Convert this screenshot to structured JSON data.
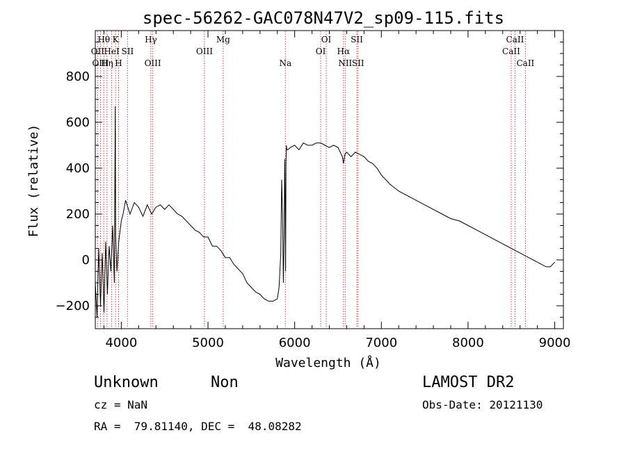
{
  "chart_data": {
    "type": "line",
    "title": "spec-56262-GAC078N47V2_sp09-115.fits",
    "xlabel": "Wavelength (Å)",
    "ylabel": "Flux (relative)",
    "xlim": [
      3700,
      9100
    ],
    "ylim": [
      -300,
      1000
    ],
    "xticks": [
      4000,
      5000,
      6000,
      7000,
      8000,
      9000
    ],
    "yticks": [
      -200,
      0,
      200,
      400,
      600,
      800
    ],
    "grid": false,
    "series": [
      {
        "x": [
          3700,
          3720,
          3740,
          3760,
          3780,
          3800,
          3820,
          3840,
          3860,
          3880,
          3900,
          3920,
          3930,
          3935,
          3950,
          3970,
          4000,
          4020,
          4050,
          4100,
          4150,
          4200,
          4250,
          4300,
          4350,
          4400,
          4450,
          4500,
          4550,
          4600,
          4650,
          4700,
          4750,
          4800,
          4850,
          4900,
          4950,
          5000,
          5050,
          5100,
          5150,
          5200,
          5250,
          5300,
          5350,
          5400,
          5450,
          5500,
          5550,
          5600,
          5650,
          5700,
          5750,
          5800,
          5820,
          5840,
          5850,
          5860,
          5870,
          5880,
          5885,
          5890,
          5895,
          5900,
          5905,
          5910,
          5920,
          5950,
          6000,
          6050,
          6100,
          6150,
          6200,
          6250,
          6300,
          6350,
          6400,
          6450,
          6500,
          6550,
          6563,
          6580,
          6600,
          6650,
          6700,
          6750,
          6800,
          6850,
          6900,
          6950,
          7000,
          7100,
          7200,
          7300,
          7400,
          7500,
          7600,
          7700,
          7800,
          7900,
          8000,
          8100,
          8200,
          8300,
          8400,
          8500,
          8550,
          8600,
          8650,
          8700,
          8750,
          8800,
          8850,
          8900,
          8950,
          9000
        ],
        "y": [
          -100,
          -250,
          50,
          -200,
          30,
          -230,
          80,
          -150,
          60,
          -50,
          150,
          -100,
          670,
          100,
          -50,
          80,
          170,
          200,
          260,
          200,
          250,
          230,
          190,
          240,
          200,
          230,
          240,
          220,
          240,
          220,
          200,
          190,
          170,
          150,
          130,
          120,
          100,
          100,
          60,
          60,
          40,
          10,
          10,
          -20,
          -40,
          -60,
          -100,
          -120,
          -140,
          -150,
          -170,
          -180,
          -180,
          -170,
          -120,
          30,
          350,
          200,
          -100,
          150,
          440,
          300,
          -50,
          420,
          500,
          480,
          480,
          490,
          500,
          480,
          510,
          500,
          500,
          510,
          510,
          500,
          490,
          500,
          490,
          450,
          420,
          460,
          470,
          450,
          470,
          460,
          450,
          430,
          420,
          400,
          370,
          330,
          300,
          280,
          260,
          240,
          220,
          200,
          180,
          170,
          150,
          130,
          110,
          90,
          70,
          50,
          40,
          30,
          20,
          10,
          0,
          -10,
          -20,
          -30,
          -30,
          -10
        ]
      }
    ],
    "line_markers": [
      {
        "label": "Hθ",
        "x": 3798,
        "row": 0
      },
      {
        "label": "K",
        "x": 3934,
        "row": 0
      },
      {
        "label": "Hγ",
        "x": 4341,
        "row": 0
      },
      {
        "label": "Mg",
        "x": 5175,
        "row": 0
      },
      {
        "label": "OI",
        "x": 6364,
        "row": 0
      },
      {
        "label": "SII",
        "x": 6717,
        "row": 0
      },
      {
        "label": "CaII",
        "x": 8542,
        "row": 0
      },
      {
        "label": "OII",
        "x": 3727,
        "row": 1
      },
      {
        "label": "HeI",
        "x": 3889,
        "row": 1
      },
      {
        "label": "SII",
        "x": 4072,
        "row": 1
      },
      {
        "label": "OIII",
        "x": 4959,
        "row": 1
      },
      {
        "label": "OI",
        "x": 6300,
        "row": 1
      },
      {
        "label": "Hα",
        "x": 6563,
        "row": 1
      },
      {
        "label": "CaII",
        "x": 8498,
        "row": 1
      },
      {
        "label": "OIII",
        "x": 3760,
        "row": 2
      },
      {
        "label": "Hη",
        "x": 3835,
        "row": 2
      },
      {
        "label": "H",
        "x": 3969,
        "row": 2
      },
      {
        "label": "OIII",
        "x": 4363,
        "row": 2
      },
      {
        "label": "Na",
        "x": 5893,
        "row": 2
      },
      {
        "label": "NII",
        "x": 6583,
        "row": 2
      },
      {
        "label": "SII",
        "x": 6731,
        "row": 2
      },
      {
        "label": "CaII",
        "x": 8662,
        "row": 2
      }
    ],
    "colors": {
      "spectrum": "#000000",
      "markers": "#d33a3a"
    }
  },
  "info": {
    "left_line1_a": "Unknown",
    "left_line1_b": "Non",
    "cz": "cz = NaN",
    "radec": "RA =  79.81140, DEC =  48.08282",
    "survey": "LAMOST DR2",
    "obsdate": "Obs-Date: 20121130"
  }
}
